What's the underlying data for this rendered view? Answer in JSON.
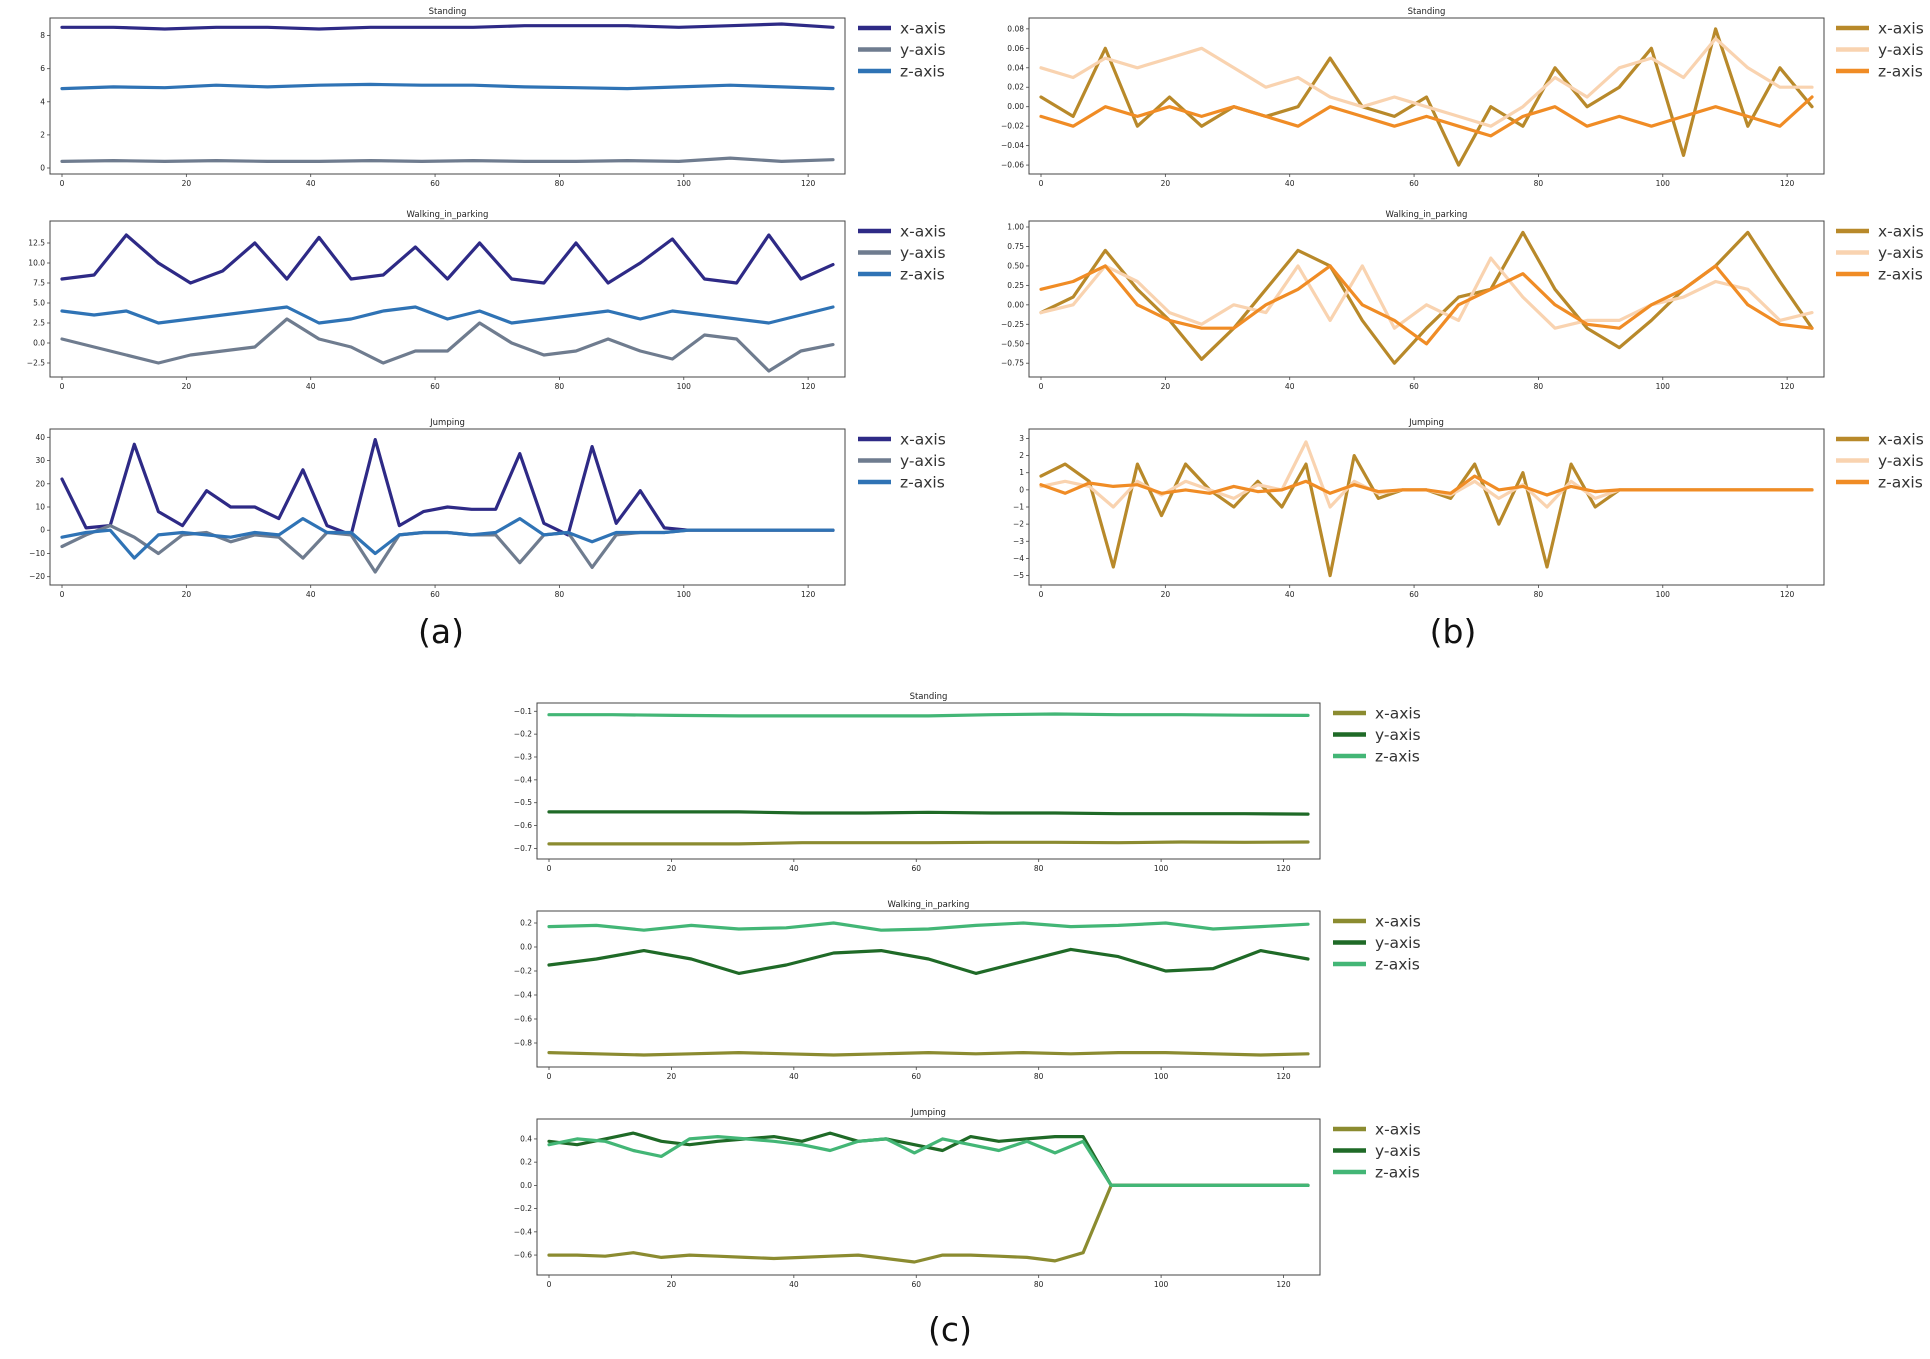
{
  "colors": {
    "a": {
      "x": "#2e2a86",
      "y": "#6f7c8f",
      "z": "#2f73b5"
    },
    "b": {
      "x": "#b8892a",
      "y": "#f9d3b0",
      "z": "#f08c25"
    },
    "c": {
      "x": "#8b8b30",
      "y": "#1f6a27",
      "z": "#43b676"
    }
  },
  "panel_labels": [
    "(a)",
    "(b)",
    "(c)"
  ],
  "chart_data": [
    {
      "panel": "(a)",
      "row": 0,
      "type": "line",
      "title": "Standing",
      "xlim": [
        0,
        124
      ],
      "ylim": [
        0,
        8.7
      ],
      "xticks": [
        "0",
        "20",
        "40",
        "60",
        "80",
        "100",
        "120"
      ],
      "yticks": [
        "0",
        "2",
        "4",
        "6",
        "8"
      ],
      "series": [
        {
          "name": "x-axis",
          "color_key": "x",
          "values": [
            8.5,
            8.5,
            8.4,
            8.5,
            8.5,
            8.4,
            8.5,
            8.5,
            8.5,
            8.6,
            8.6,
            8.6,
            8.5,
            8.6,
            8.7,
            8.5
          ]
        },
        {
          "name": "y-axis",
          "color_key": "y",
          "values": [
            0.4,
            0.45,
            0.4,
            0.45,
            0.4,
            0.4,
            0.45,
            0.4,
            0.45,
            0.4,
            0.4,
            0.45,
            0.4,
            0.6,
            0.4,
            0.5
          ]
        },
        {
          "name": "z-axis",
          "color_key": "z",
          "values": [
            4.8,
            4.9,
            4.85,
            5.0,
            4.9,
            5.0,
            5.05,
            5.0,
            5.0,
            4.9,
            4.85,
            4.8,
            4.9,
            5.0,
            4.9,
            4.8
          ]
        }
      ]
    },
    {
      "panel": "(a)",
      "row": 1,
      "type": "line",
      "title": "Walking_in_parking",
      "xlim": [
        0,
        124
      ],
      "ylim": [
        -3.5,
        14.5
      ],
      "xticks": [
        "0",
        "20",
        "40",
        "60",
        "80",
        "100",
        "120"
      ],
      "yticks": [
        "−2.5",
        "0.0",
        "2.5",
        "5.0",
        "7.5",
        "10.0",
        "12.5"
      ],
      "series": [
        {
          "name": "x-axis",
          "color_key": "x",
          "values": [
            8,
            8.5,
            13.5,
            10,
            7.5,
            9,
            12.5,
            8,
            13.2,
            8,
            8.5,
            12,
            8,
            12.5,
            8,
            7.5,
            12.5,
            7.5,
            10,
            13,
            8,
            7.5,
            13.5,
            8,
            9.8
          ]
        },
        {
          "name": "y-axis",
          "color_key": "y",
          "values": [
            0.5,
            -0.5,
            -1.5,
            -2.5,
            -1.5,
            -1,
            -0.5,
            3,
            0.5,
            -0.5,
            -2.5,
            -1,
            -1,
            2.5,
            0,
            -1.5,
            -1,
            0.5,
            -1,
            -2,
            1,
            0.5,
            -3.5,
            -1,
            -0.2
          ]
        },
        {
          "name": "z-axis",
          "color_key": "z",
          "values": [
            4,
            3.5,
            4,
            2.5,
            3,
            3.5,
            4,
            4.5,
            2.5,
            3,
            4,
            4.5,
            3,
            4,
            2.5,
            3,
            3.5,
            4,
            3,
            4,
            3.5,
            3,
            2.5,
            3.5,
            4.5
          ]
        }
      ]
    },
    {
      "panel": "(a)",
      "row": 2,
      "type": "line",
      "title": "Jumping",
      "xlim": [
        0,
        124
      ],
      "ylim": [
        -21,
        41
      ],
      "xticks": [
        "0",
        "20",
        "40",
        "60",
        "80",
        "100",
        "120"
      ],
      "yticks": [
        "−20",
        "−10",
        "0",
        "10",
        "20",
        "30",
        "40"
      ],
      "series": [
        {
          "name": "x-axis",
          "color_key": "x",
          "values": [
            22,
            1,
            2,
            37,
            8,
            2,
            17,
            10,
            10,
            5,
            26,
            2,
            -2,
            39,
            2,
            8,
            10,
            9,
            9,
            33,
            3,
            -2,
            36,
            3,
            17,
            1,
            0,
            0,
            0,
            0,
            0,
            0,
            0
          ]
        },
        {
          "name": "y-axis",
          "color_key": "y",
          "values": [
            -7,
            -2,
            2,
            -3,
            -10,
            -2,
            -1,
            -5,
            -2,
            -3,
            -12,
            -1,
            -2,
            -18,
            -2,
            -1,
            -1,
            -2,
            -2,
            -14,
            -2,
            -1,
            -16,
            -2,
            -1,
            -1,
            0,
            0,
            0,
            0,
            0,
            0,
            0
          ]
        },
        {
          "name": "z-axis",
          "color_key": "z",
          "values": [
            -3,
            -1,
            0,
            -12,
            -2,
            -1,
            -2,
            -3,
            -1,
            -2,
            5,
            -1,
            -1,
            -10,
            -2,
            -1,
            -1,
            -2,
            -1,
            5,
            -2,
            -1,
            -5,
            -1,
            -1,
            -1,
            0,
            0,
            0,
            0,
            0,
            0,
            0
          ]
        }
      ]
    },
    {
      "panel": "(b)",
      "row": 0,
      "type": "line",
      "title": "Standing",
      "xlim": [
        0,
        124
      ],
      "ylim": [
        -0.063,
        0.085
      ],
      "xticks": [
        "0",
        "20",
        "40",
        "60",
        "80",
        "100",
        "120"
      ],
      "yticks": [
        "−0.06",
        "−0.04",
        "−0.02",
        "0.00",
        "0.02",
        "0.04",
        "0.06",
        "0.08"
      ],
      "series": [
        {
          "name": "x-axis",
          "color_key": "x",
          "values": [
            0.01,
            -0.01,
            0.06,
            -0.02,
            0.01,
            -0.02,
            0.0,
            -0.01,
            0.0,
            0.05,
            0.0,
            -0.01,
            0.01,
            -0.06,
            0.0,
            -0.02,
            0.04,
            0.0,
            0.02,
            0.06,
            -0.05,
            0.08,
            -0.02,
            0.04,
            0.0
          ]
        },
        {
          "name": "y-axis",
          "color_key": "y",
          "values": [
            0.04,
            0.03,
            0.05,
            0.04,
            0.05,
            0.06,
            0.04,
            0.02,
            0.03,
            0.01,
            0.0,
            0.01,
            0.0,
            -0.01,
            -0.02,
            0.0,
            0.03,
            0.01,
            0.04,
            0.05,
            0.03,
            0.07,
            0.04,
            0.02,
            0.02
          ]
        },
        {
          "name": "z-axis",
          "color_key": "z",
          "values": [
            -0.01,
            -0.02,
            0.0,
            -0.01,
            0.0,
            -0.01,
            0.0,
            -0.01,
            -0.02,
            0.0,
            -0.01,
            -0.02,
            -0.01,
            -0.02,
            -0.03,
            -0.01,
            0.0,
            -0.02,
            -0.01,
            -0.02,
            -0.01,
            0.0,
            -0.01,
            -0.02,
            0.01
          ]
        }
      ]
    },
    {
      "panel": "(b)",
      "row": 1,
      "type": "line",
      "title": "Walking_in_parking",
      "xlim": [
        0,
        124
      ],
      "ylim": [
        -0.85,
        1.0
      ],
      "xticks": [
        "0",
        "20",
        "40",
        "60",
        "80",
        "100",
        "120"
      ],
      "yticks": [
        "−0.75",
        "−0.50",
        "−0.25",
        "0.00",
        "0.25",
        "0.50",
        "0.75",
        "1.00"
      ],
      "series": [
        {
          "name": "x-axis",
          "color_key": "x",
          "values": [
            -0.1,
            0.1,
            0.7,
            0.2,
            -0.2,
            -0.7,
            -0.3,
            0.2,
            0.7,
            0.5,
            -0.2,
            -0.75,
            -0.3,
            0.1,
            0.2,
            0.93,
            0.2,
            -0.3,
            -0.55,
            -0.2,
            0.2,
            0.5,
            0.93,
            0.3,
            -0.3
          ]
        },
        {
          "name": "y-axis",
          "color_key": "y",
          "values": [
            -0.1,
            0.0,
            0.5,
            0.3,
            -0.1,
            -0.25,
            0.0,
            -0.1,
            0.5,
            -0.2,
            0.5,
            -0.3,
            0.0,
            -0.2,
            0.6,
            0.1,
            -0.3,
            -0.2,
            -0.2,
            0.0,
            0.1,
            0.3,
            0.2,
            -0.2,
            -0.1
          ]
        },
        {
          "name": "z-axis",
          "color_key": "z",
          "values": [
            0.2,
            0.3,
            0.5,
            0.0,
            -0.2,
            -0.3,
            -0.3,
            0.0,
            0.2,
            0.5,
            0.0,
            -0.2,
            -0.5,
            0.0,
            0.2,
            0.4,
            0.0,
            -0.25,
            -0.3,
            0.0,
            0.2,
            0.5,
            0.0,
            -0.25,
            -0.3
          ]
        }
      ]
    },
    {
      "panel": "(b)",
      "row": 2,
      "type": "line",
      "title": "Jumping",
      "xlim": [
        0,
        124
      ],
      "ylim": [
        -5.2,
        3.2
      ],
      "xticks": [
        "0",
        "20",
        "40",
        "60",
        "80",
        "100",
        "120"
      ],
      "yticks": [
        "−5",
        "−4",
        "−3",
        "−2",
        "−1",
        "0",
        "1",
        "2",
        "3"
      ],
      "series": [
        {
          "name": "x-axis",
          "color_key": "x",
          "values": [
            0.8,
            1.5,
            0.5,
            -4.5,
            1.5,
            -1.5,
            1.5,
            0,
            -1,
            0.5,
            -1,
            1.5,
            -5,
            2,
            -0.5,
            0,
            0,
            -0.5,
            1.5,
            -2,
            1,
            -4.5,
            1.5,
            -1,
            0,
            0,
            0,
            0,
            0,
            0,
            0,
            0,
            0
          ]
        },
        {
          "name": "y-axis",
          "color_key": "y",
          "values": [
            0.2,
            0.5,
            0.2,
            -1,
            0.5,
            -0.3,
            0.5,
            0,
            -0.5,
            0.3,
            0,
            2.8,
            -1,
            0.5,
            -0.2,
            0,
            0,
            -0.3,
            0.5,
            -0.5,
            0.3,
            -1,
            0.5,
            -0.5,
            0,
            0,
            0,
            0,
            0,
            0,
            0,
            0,
            0
          ]
        },
        {
          "name": "z-axis",
          "color_key": "z",
          "values": [
            0.3,
            -0.2,
            0.4,
            0.2,
            0.3,
            -0.2,
            0,
            -0.2,
            0.2,
            -0.1,
            0,
            0.5,
            -0.2,
            0.3,
            -0.1,
            0,
            0,
            -0.2,
            0.8,
            0,
            0.2,
            -0.3,
            0.2,
            -0.1,
            0,
            0,
            0,
            0,
            0,
            0,
            0,
            0,
            0
          ]
        }
      ]
    },
    {
      "panel": "(c)",
      "row": 0,
      "type": "line",
      "title": "Standing",
      "xlim": [
        0,
        124
      ],
      "ylim": [
        -0.72,
        -0.09
      ],
      "xticks": [
        "0",
        "20",
        "40",
        "60",
        "80",
        "100",
        "120"
      ],
      "yticks": [
        "−0.7",
        "−0.6",
        "−0.5",
        "−0.4",
        "−0.3",
        "−0.2",
        "−0.1"
      ],
      "series": [
        {
          "name": "x-axis",
          "color_key": "x",
          "values": [
            -0.68,
            -0.68,
            -0.68,
            -0.68,
            -0.675,
            -0.675,
            -0.675,
            -0.673,
            -0.673,
            -0.675,
            -0.672,
            -0.673,
            -0.672
          ]
        },
        {
          "name": "y-axis",
          "color_key": "y",
          "values": [
            -0.54,
            -0.54,
            -0.54,
            -0.54,
            -0.545,
            -0.545,
            -0.542,
            -0.545,
            -0.545,
            -0.548,
            -0.548,
            -0.548,
            -0.55
          ]
        },
        {
          "name": "z-axis",
          "color_key": "z",
          "values": [
            -0.115,
            -0.115,
            -0.118,
            -0.12,
            -0.12,
            -0.12,
            -0.12,
            -0.115,
            -0.112,
            -0.115,
            -0.115,
            -0.117,
            -0.118
          ]
        }
      ]
    },
    {
      "panel": "(c)",
      "row": 1,
      "type": "line",
      "title": "Walking_in_parking",
      "xlim": [
        0,
        124
      ],
      "ylim": [
        -0.95,
        0.25
      ],
      "xticks": [
        "0",
        "20",
        "40",
        "60",
        "80",
        "100",
        "120"
      ],
      "yticks": [
        "−0.8",
        "−0.6",
        "−0.4",
        "−0.2",
        "0.0",
        "0.2"
      ],
      "series": [
        {
          "name": "x-axis",
          "color_key": "x",
          "values": [
            -0.88,
            -0.89,
            -0.9,
            -0.89,
            -0.88,
            -0.89,
            -0.9,
            -0.89,
            -0.88,
            -0.89,
            -0.88,
            -0.89,
            -0.88,
            -0.88,
            -0.89,
            -0.9,
            -0.89
          ]
        },
        {
          "name": "y-axis",
          "color_key": "y",
          "values": [
            -0.15,
            -0.1,
            -0.03,
            -0.1,
            -0.22,
            -0.15,
            -0.05,
            -0.03,
            -0.1,
            -0.22,
            -0.12,
            -0.02,
            -0.08,
            -0.2,
            -0.18,
            -0.03,
            -0.1
          ]
        },
        {
          "name": "z-axis",
          "color_key": "z",
          "values": [
            0.17,
            0.18,
            0.14,
            0.18,
            0.15,
            0.16,
            0.2,
            0.14,
            0.15,
            0.18,
            0.2,
            0.17,
            0.18,
            0.2,
            0.15,
            0.17,
            0.19
          ]
        }
      ]
    },
    {
      "panel": "(c)",
      "row": 2,
      "type": "line",
      "title": "Jumping",
      "xlim": [
        0,
        124
      ],
      "ylim": [
        -0.72,
        0.52
      ],
      "xticks": [
        "0",
        "20",
        "40",
        "60",
        "80",
        "100",
        "120"
      ],
      "yticks": [
        "−0.6",
        "−0.4",
        "−0.2",
        "0.0",
        "0.2",
        "0.4"
      ],
      "series": [
        {
          "name": "x-axis",
          "color_key": "x",
          "values": [
            -0.6,
            -0.6,
            -0.61,
            -0.58,
            -0.62,
            -0.6,
            -0.61,
            -0.62,
            -0.63,
            -0.62,
            -0.61,
            -0.6,
            -0.63,
            -0.66,
            -0.6,
            -0.6,
            -0.61,
            -0.62,
            -0.65,
            -0.58,
            0,
            0,
            0,
            0,
            0,
            0,
            0,
            0
          ]
        },
        {
          "name": "y-axis",
          "color_key": "y",
          "values": [
            0.38,
            0.35,
            0.4,
            0.45,
            0.38,
            0.35,
            0.38,
            0.4,
            0.42,
            0.38,
            0.45,
            0.38,
            0.4,
            0.35,
            0.3,
            0.42,
            0.38,
            0.4,
            0.42,
            0.42,
            0,
            0,
            0,
            0,
            0,
            0,
            0,
            0
          ]
        },
        {
          "name": "z-axis",
          "color_key": "z",
          "values": [
            0.35,
            0.4,
            0.38,
            0.3,
            0.25,
            0.4,
            0.42,
            0.4,
            0.38,
            0.35,
            0.3,
            0.38,
            0.4,
            0.28,
            0.4,
            0.35,
            0.3,
            0.38,
            0.28,
            0.38,
            0,
            0,
            0,
            0,
            0,
            0,
            0,
            0
          ]
        }
      ]
    }
  ]
}
